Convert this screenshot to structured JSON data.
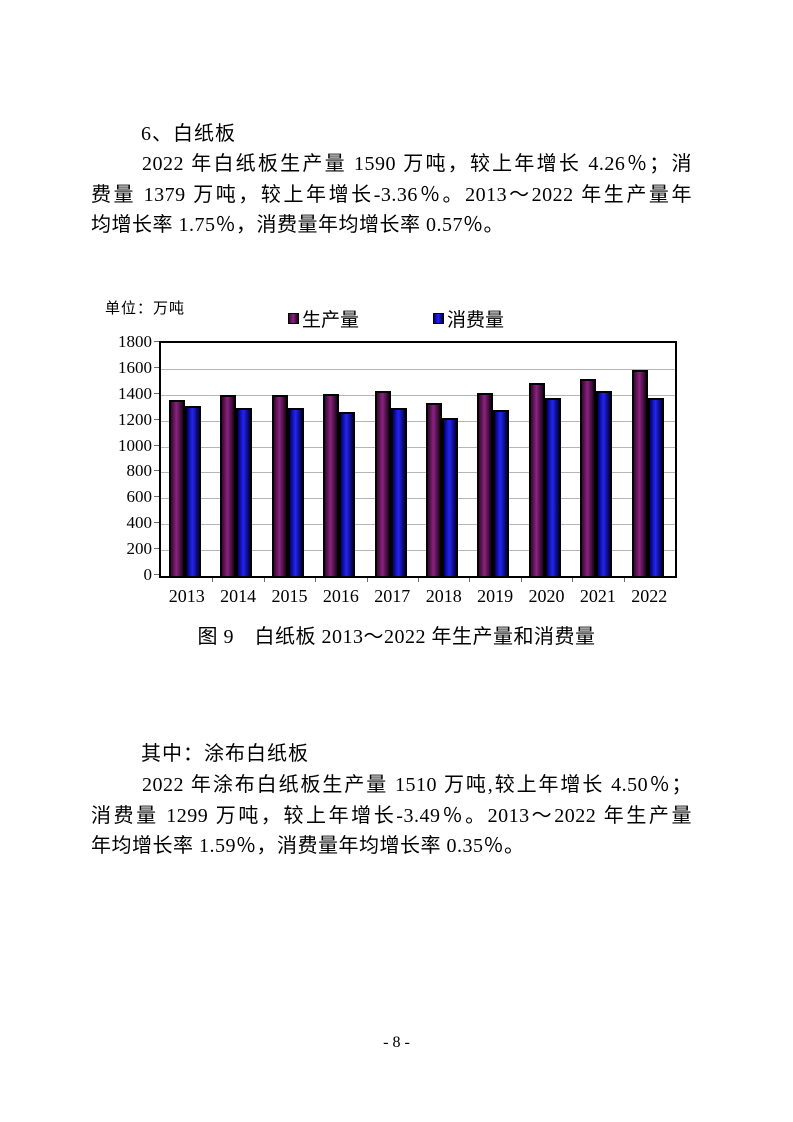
{
  "document": {
    "section_heading": "6、白纸板",
    "paragraph1_lines": [
      "2022 年白纸板生产量 1590 万吨，较上年增长 4.26％；消",
      "费量 1379 万吨，较上年增长-3.36％。2013～2022 年生产量年",
      "均增长率 1.75％，消费量年均增长率 0.57％。"
    ],
    "sub_heading": "其中：涂布白纸板",
    "paragraph2_lines": [
      "2022 年涂布白纸板生产量 1510 万吨,较上年增长 4.50％；",
      "消费量 1299 万吨，较上年增长-3.49％。2013～2022 年生产量",
      "年均增长率 1.59％，消费量年均增长率 0.35％。"
    ],
    "footer_page_number": "- 8 -"
  },
  "chart_data": {
    "type": "bar",
    "unit_label": "单位：万吨",
    "caption": "图 9　白纸板 2013～2022 年生产量和消费量",
    "categories": [
      "2013",
      "2014",
      "2015",
      "2016",
      "2017",
      "2018",
      "2019",
      "2020",
      "2021",
      "2022"
    ],
    "series": [
      {
        "name": "生产量",
        "values": [
          1360,
          1395,
          1400,
          1405,
          1430,
          1335,
          1410,
          1490,
          1525,
          1590
        ],
        "gradient": [
          "#36082f",
          "#8a2280",
          "#1c041a"
        ]
      },
      {
        "name": "消费量",
        "values": [
          1310,
          1300,
          1295,
          1265,
          1300,
          1220,
          1280,
          1375,
          1427,
          1379
        ],
        "gradient": [
          "#000070",
          "#2424f0",
          "#000042"
        ]
      }
    ],
    "ylim": [
      0,
      1800
    ],
    "ytick_step": 200,
    "grid": true,
    "gridline_color": "#b5b5b5",
    "legend_position": "top"
  }
}
